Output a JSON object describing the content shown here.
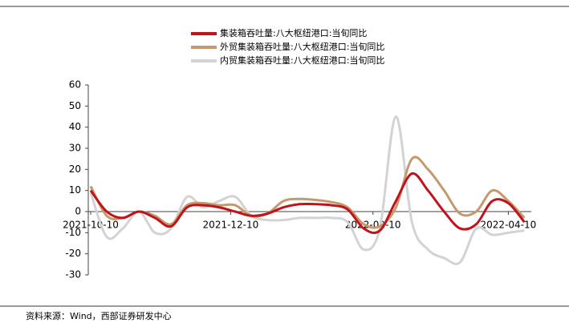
{
  "chart_data": {
    "type": "line",
    "x": [
      "2021-10-10",
      "2021-10-17",
      "2021-10-24",
      "2021-10-31",
      "2021-11-07",
      "2021-11-14",
      "2021-11-21",
      "2021-11-28",
      "2021-12-05",
      "2021-12-12",
      "2021-12-19",
      "2021-12-26",
      "2022-01-02",
      "2022-01-09",
      "2022-01-16",
      "2022-01-23",
      "2022-01-30",
      "2022-02-06",
      "2022-02-13",
      "2022-02-20",
      "2022-02-27",
      "2022-03-06",
      "2022-03-13",
      "2022-03-20",
      "2022-03-27",
      "2022-04-03",
      "2022-04-10",
      "2022-04-17"
    ],
    "series": [
      {
        "name": "集装箱吞吐量:八大枢纽港口:当旬同比",
        "color": "#c0141c",
        "values": [
          10,
          0,
          -3,
          0,
          -3,
          -7,
          2,
          3,
          2,
          0,
          -2,
          -1,
          2,
          3.5,
          3.5,
          3,
          1,
          -8,
          -9,
          5,
          18,
          10,
          0,
          -8,
          -6,
          5,
          4,
          -5
        ]
      },
      {
        "name": "外贸集装箱吞吐量:八大枢纽港口:当旬同比",
        "color": "#c49a6c",
        "values": [
          12,
          -2,
          -3,
          0,
          -2,
          -6,
          3,
          4,
          3,
          3,
          -2,
          -1,
          5,
          6,
          5.5,
          4.5,
          2,
          -6,
          -7,
          2,
          25,
          20,
          10,
          -1,
          0,
          10,
          5,
          -3
        ]
      },
      {
        "name": "内贸集装箱吞吐量:八大枢纽港口:当旬同比",
        "color": "#d3d3d3",
        "values": [
          9,
          -12,
          -8,
          0,
          -10,
          -8,
          7,
          2,
          5,
          7,
          -2,
          -4,
          -4,
          -3,
          -3,
          -3,
          -5,
          -18,
          -8,
          45,
          -5,
          -18,
          -22,
          -24,
          -8,
          -11,
          -10,
          -9
        ]
      }
    ],
    "ylim": [
      -30,
      60
    ],
    "yticks": [
      -30,
      -20,
      -10,
      0,
      10,
      20,
      30,
      40,
      50,
      60
    ],
    "xlim": [
      "2021-10-10",
      "2022-04-20"
    ],
    "xticks": [
      "2021-10-10",
      "2021-12-10",
      "2022-02-10",
      "2022-04-10"
    ],
    "legend": "top",
    "source": "资料来源：Wind，西部证券研发中心"
  }
}
